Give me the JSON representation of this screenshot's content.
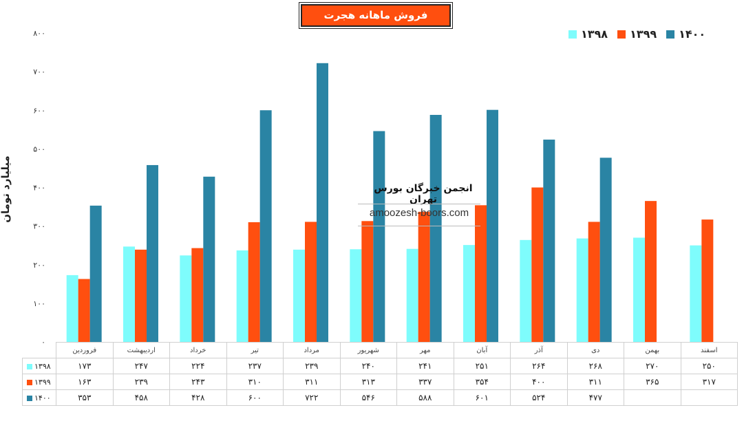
{
  "chart_data": {
    "type": "bar",
    "title": "فروش ماهانه هجرت",
    "ylabel": "میلیارد تومان",
    "xlabel": "",
    "ylim": [
      0,
      800
    ],
    "yticks": [
      "۰",
      "۱۰۰",
      "۲۰۰",
      "۳۰۰",
      "۴۰۰",
      "۵۰۰",
      "۶۰۰",
      "۷۰۰",
      "۸۰۰"
    ],
    "categories": [
      "فروردین",
      "اردیبهشت",
      "خرداد",
      "تیر",
      "مرداد",
      "شهریور",
      "مهر",
      "آبان",
      "آذر",
      "دی",
      "بهمن",
      "اسفند"
    ],
    "series": [
      {
        "name": "۱۳۹۸",
        "color": "#7EFCFC",
        "values": [
          173,
          247,
          224,
          237,
          239,
          240,
          241,
          251,
          264,
          268,
          270,
          250
        ],
        "labels": [
          "۱۷۳",
          "۲۴۷",
          "۲۲۴",
          "۲۳۷",
          "۲۳۹",
          "۲۴۰",
          "۲۴۱",
          "۲۵۱",
          "۲۶۴",
          "۲۶۸",
          "۲۷۰",
          "۲۵۰"
        ]
      },
      {
        "name": "۱۳۹۹",
        "color": "#FF4F0F",
        "values": [
          163,
          239,
          243,
          310,
          311,
          313,
          337,
          354,
          400,
          311,
          365,
          317
        ],
        "labels": [
          "۱۶۳",
          "۲۳۹",
          "۲۴۳",
          "۳۱۰",
          "۳۱۱",
          "۳۱۳",
          "۳۳۷",
          "۳۵۴",
          "۴۰۰",
          "۳۱۱",
          "۳۶۵",
          "۳۱۷"
        ]
      },
      {
        "name": "۱۴۰۰",
        "color": "#2A84A4",
        "values": [
          353,
          458,
          428,
          600,
          722,
          546,
          588,
          601,
          524,
          477,
          null,
          null
        ],
        "labels": [
          "۳۵۳",
          "۴۵۸",
          "۴۲۸",
          "۶۰۰",
          "۷۲۲",
          "۵۴۶",
          "۵۸۸",
          "۶۰۱",
          "۵۲۴",
          "۴۷۷",
          "",
          ""
        ]
      }
    ],
    "legend_position": "top-right",
    "grid": false
  },
  "watermark": {
    "title": "انجمن خبرگان بورس تهران",
    "url": "amoozesh-boors.com"
  }
}
